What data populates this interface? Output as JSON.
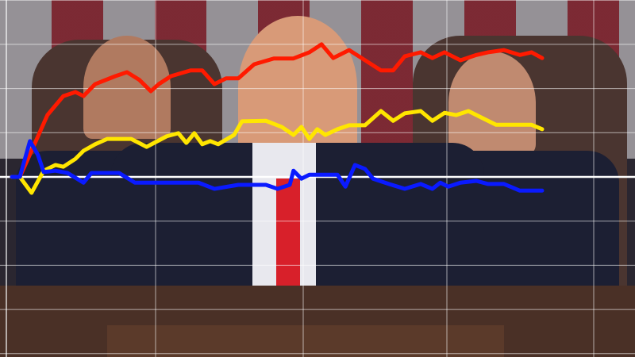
{
  "chart_data": {
    "type": "line",
    "title": "",
    "xlabel": "",
    "ylabel": "",
    "xlim": [
      0,
      100
    ],
    "ylim": [
      -40,
      40
    ],
    "grid": true,
    "legend": "none",
    "series": [
      {
        "color": "#ff1a00",
        "points": [
          [
            0,
            0
          ],
          [
            1.5,
            0
          ],
          [
            3.7,
            5.9
          ],
          [
            6.7,
            14
          ],
          [
            9.7,
            18.3
          ],
          [
            12,
            19.2
          ],
          [
            13.5,
            18.3
          ],
          [
            15.7,
            21
          ],
          [
            19.5,
            22.8
          ],
          [
            21.7,
            23.7
          ],
          [
            24,
            22
          ],
          [
            26.2,
            19.4
          ],
          [
            27.7,
            21
          ],
          [
            30,
            22.8
          ],
          [
            33.7,
            24.1
          ],
          [
            35.9,
            24.1
          ],
          [
            38.2,
            21
          ],
          [
            40.4,
            22.3
          ],
          [
            42.7,
            22.3
          ],
          [
            45.7,
            25.5
          ],
          [
            49.4,
            26.8
          ],
          [
            53.1,
            26.8
          ],
          [
            56.1,
            28.2
          ],
          [
            58.4,
            30
          ],
          [
            60.6,
            26.9
          ],
          [
            63.6,
            28.7
          ],
          [
            66.6,
            26.4
          ],
          [
            69.6,
            24.1
          ],
          [
            71.9,
            24.1
          ],
          [
            74.1,
            27.3
          ],
          [
            77.1,
            28.2
          ],
          [
            79.3,
            26.9
          ],
          [
            81.6,
            28.2
          ],
          [
            84.6,
            26.4
          ],
          [
            87.6,
            27.6
          ],
          [
            89.8,
            28.2
          ],
          [
            92.8,
            28.7
          ],
          [
            95.8,
            27.6
          ],
          [
            98,
            28.2
          ],
          [
            100,
            26.9
          ]
        ]
      },
      {
        "color": "#ffe600",
        "points": [
          [
            0,
            0
          ],
          [
            1.5,
            0
          ],
          [
            3.7,
            -3.6
          ],
          [
            6,
            1.4
          ],
          [
            8.2,
            2.7
          ],
          [
            9.7,
            2.3
          ],
          [
            12,
            4.1
          ],
          [
            13.5,
            5.9
          ],
          [
            15.7,
            7.4
          ],
          [
            18,
            8.6
          ],
          [
            22.5,
            8.6
          ],
          [
            25.4,
            6.8
          ],
          [
            29.2,
            9.2
          ],
          [
            31.4,
            9.9
          ],
          [
            32.9,
            7.7
          ],
          [
            34.4,
            9.9
          ],
          [
            35.9,
            7.4
          ],
          [
            37.4,
            8.1
          ],
          [
            38.9,
            7.4
          ],
          [
            41.9,
            9.5
          ],
          [
            43.4,
            12.6
          ],
          [
            47.9,
            12.7
          ],
          [
            50.9,
            11.3
          ],
          [
            53.1,
            9.5
          ],
          [
            54.6,
            11.3
          ],
          [
            56.1,
            8.6
          ],
          [
            57.6,
            10.8
          ],
          [
            59.1,
            9.5
          ],
          [
            61.4,
            10.8
          ],
          [
            63.6,
            11.7
          ],
          [
            66.6,
            11.7
          ],
          [
            69.6,
            14.9
          ],
          [
            71.9,
            12.7
          ],
          [
            74.1,
            14.4
          ],
          [
            77.1,
            14.9
          ],
          [
            79.3,
            12.7
          ],
          [
            81.6,
            14.5
          ],
          [
            83.8,
            14
          ],
          [
            86.1,
            14.9
          ],
          [
            89.1,
            13.1
          ],
          [
            91.3,
            11.8
          ],
          [
            98,
            11.8
          ],
          [
            100,
            10.8
          ]
        ]
      },
      {
        "color": "#0a1aff",
        "points": [
          [
            0,
            0
          ],
          [
            1.5,
            0
          ],
          [
            3.4,
            8.1
          ],
          [
            4.9,
            5
          ],
          [
            6,
            1.1
          ],
          [
            8.2,
            1.4
          ],
          [
            10.5,
            0.9
          ],
          [
            13.5,
            -1.3
          ],
          [
            15,
            0.9
          ],
          [
            20.2,
            0.9
          ],
          [
            23.2,
            -1.3
          ],
          [
            26.2,
            -1.3
          ],
          [
            35.2,
            -1.3
          ],
          [
            38.2,
            -2.7
          ],
          [
            42.7,
            -1.8
          ],
          [
            47.9,
            -1.8
          ],
          [
            50.1,
            -2.7
          ],
          [
            52.4,
            -1.8
          ],
          [
            53.1,
            1.4
          ],
          [
            54.6,
            -0.4
          ],
          [
            56.1,
            0.5
          ],
          [
            61.4,
            0.5
          ],
          [
            62.9,
            -2.2
          ],
          [
            64.7,
            2.7
          ],
          [
            66.6,
            1.8
          ],
          [
            68.1,
            -0.4
          ],
          [
            71.1,
            -1.6
          ],
          [
            74.1,
            -2.7
          ],
          [
            77.1,
            -1.6
          ],
          [
            79.3,
            -2.7
          ],
          [
            80.8,
            -1.3
          ],
          [
            82.3,
            -2.2
          ],
          [
            84.6,
            -1.3
          ],
          [
            87.6,
            -0.9
          ],
          [
            89.8,
            -1.6
          ],
          [
            92.8,
            -1.6
          ],
          [
            95.8,
            -3.1
          ],
          [
            100,
            -3.1
          ]
        ]
      }
    ]
  }
}
